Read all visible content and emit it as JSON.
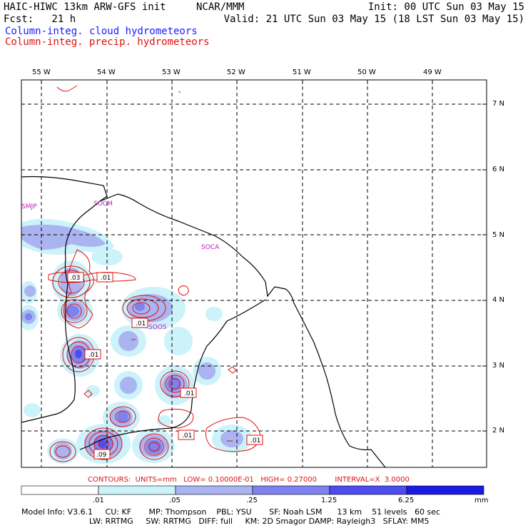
{
  "header": {
    "title_left": "HAIC-HIWC 13km ARW-GFS init",
    "org": "NCAR/MMM",
    "init": "Init: 00 UTC Sun 03 May 15",
    "fcst": "Fcst:   21 h",
    "valid": "Valid: 21 UTC Sun 03 May 15 (18 LST Sun 03 May 15)",
    "field_cloud": "Column-integ. cloud hydrometeors",
    "field_precip": "Column-integ. precip. hydrometeors",
    "cloud_color": "#1a1aff",
    "precip_color": "#e01010"
  },
  "map": {
    "lon_labels": [
      "55 W",
      "54 W",
      "53 W",
      "52 W",
      "51 W",
      "50 W",
      "49 W"
    ],
    "lat_labels": [
      "7 N",
      "6 N",
      "5 N",
      "4 N",
      "3 N",
      "2 N"
    ],
    "stations": [
      "SMJP",
      "SOCM",
      "SOCA",
      "SOOS"
    ],
    "contour_labels": [
      ".03",
      ".01",
      ".01",
      ".01",
      ".01",
      ".01",
      ".09",
      ".01"
    ]
  },
  "contours_info": {
    "line": "CONTOURS:  UNITS=mm   LOW= 0.10000E-01   HIGH= 0.27000        INTERVAL=X  3.0000"
  },
  "colorbar": {
    "ticks": [
      ".01",
      ".05",
      ".25",
      "1.25",
      "6.25"
    ],
    "unit": "mm",
    "colors": [
      "#ffffff",
      "#ccf2fa",
      "#aab4f0",
      "#7d82ee",
      "#4c4cf0",
      "#1a1ae6"
    ]
  },
  "footer": {
    "line1": "Model Info: V3.6.1     CU: KF       MP: Thompson    PBL: YSU       SF: Noah LSM      13 km    51 levels   60 sec",
    "line2": "LW: RRTMG     SW: RRTMG   DIFF: full     KM: 2D Smagor DAMP: Rayleigh3   SFLAY: MM5"
  }
}
